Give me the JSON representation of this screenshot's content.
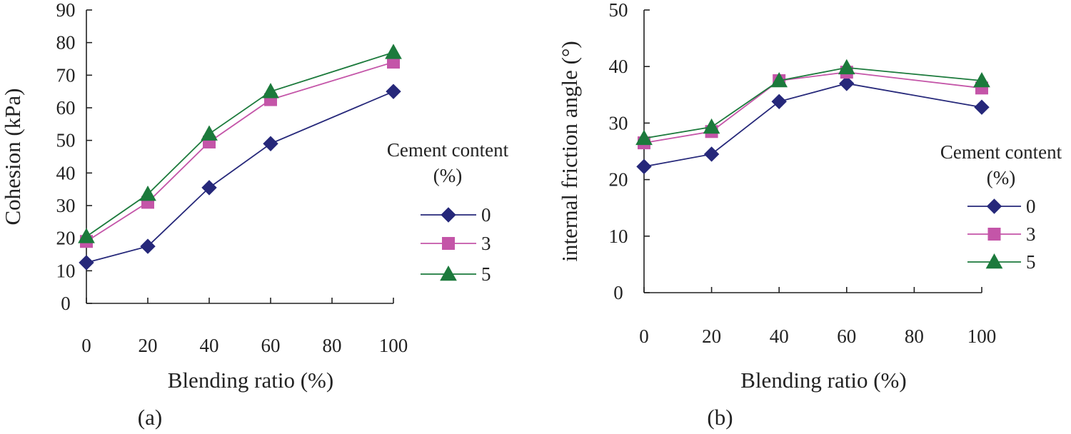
{
  "chart_data": [
    {
      "type": "line",
      "panel_label": "(a)",
      "xlabel": "Blending ratio (%)",
      "ylabel": "Cohesion (kPa)",
      "x_ticks": [
        "0",
        "20",
        "40",
        "60",
        "80",
        "100"
      ],
      "x": [
        0,
        20,
        40,
        60,
        100
      ],
      "xlim": [
        0,
        100
      ],
      "ylim": [
        0,
        90
      ],
      "y_ticks": [
        "0",
        "10",
        "20",
        "30",
        "40",
        "50",
        "60",
        "70",
        "80",
        "90"
      ],
      "grid": false,
      "legend": {
        "title_line1": "Cement content",
        "title_line2": "(%)",
        "placement": "right"
      },
      "series": [
        {
          "name": "0",
          "marker": "diamond",
          "color": "#26287a",
          "values": [
            12.5,
            17.5,
            35.5,
            49,
            65
          ]
        },
        {
          "name": "3",
          "marker": "square",
          "color": "#c455a8",
          "values": [
            19,
            31,
            49.5,
            62.5,
            74
          ]
        },
        {
          "name": "5",
          "marker": "triangle",
          "color": "#1c7a3c",
          "values": [
            20.5,
            33.5,
            52,
            65,
            77
          ]
        }
      ]
    },
    {
      "type": "line",
      "panel_label": "(b)",
      "xlabel": "Blending ratio (%)",
      "ylabel": "internal friction angle (°)",
      "x_ticks": [
        "0",
        "20",
        "40",
        "60",
        "80",
        "100"
      ],
      "x": [
        0,
        20,
        40,
        60,
        100
      ],
      "xlim": [
        0,
        100
      ],
      "ylim": [
        0,
        50
      ],
      "y_ticks": [
        "0",
        "10",
        "20",
        "30",
        "40",
        "50"
      ],
      "grid": false,
      "legend": {
        "title_line1": "Cement content",
        "title_line2": "(%)",
        "placement": "right"
      },
      "series": [
        {
          "name": "0",
          "marker": "diamond",
          "color": "#26287a",
          "values": [
            22.3,
            24.5,
            33.8,
            37,
            32.8
          ]
        },
        {
          "name": "3",
          "marker": "square",
          "color": "#c455a8",
          "values": [
            26.5,
            28.5,
            37.5,
            39,
            36.2
          ]
        },
        {
          "name": "5",
          "marker": "triangle",
          "color": "#1c7a3c",
          "values": [
            27.3,
            29.3,
            37.5,
            39.8,
            37.5
          ]
        }
      ]
    }
  ]
}
